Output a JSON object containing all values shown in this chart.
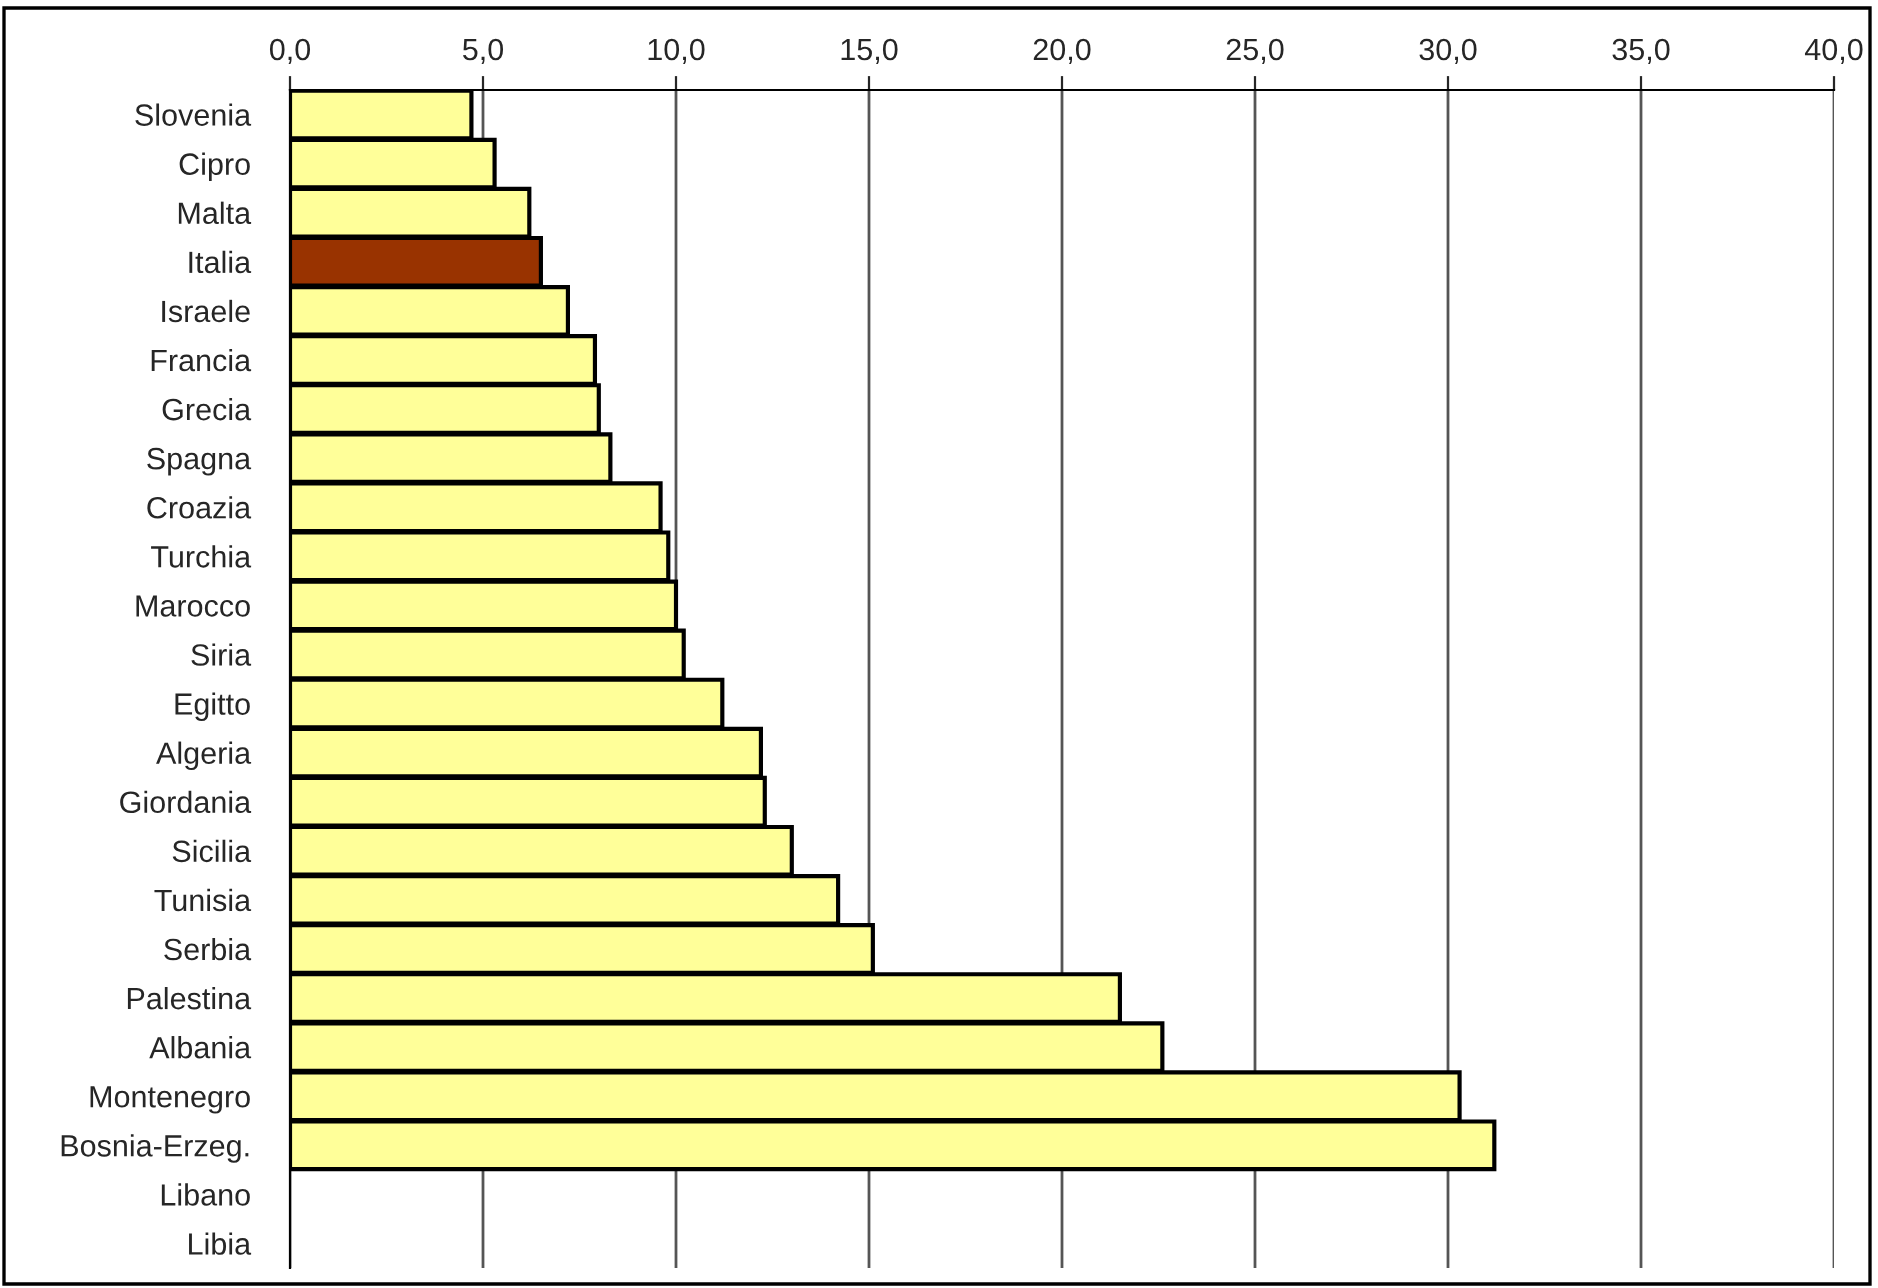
{
  "chart_data": {
    "type": "bar",
    "orientation": "horizontal",
    "categories": [
      "Slovenia",
      "Cipro",
      "Malta",
      "Italia",
      "Israele",
      "Francia",
      "Grecia",
      "Spagna",
      "Croazia",
      "Turchia",
      "Marocco",
      "Siria",
      "Egitto",
      "Algeria",
      "Giordania",
      "Sicilia",
      "Tunisia",
      "Serbia",
      "Palestina",
      "Albania",
      "Montenegro",
      "Bosnia-Erzeg.",
      "Libano",
      "Libia"
    ],
    "values": [
      4.7,
      5.3,
      6.2,
      6.5,
      7.2,
      7.9,
      8.0,
      8.3,
      9.6,
      9.8,
      10.0,
      10.2,
      11.2,
      12.2,
      12.3,
      13.0,
      14.2,
      15.1,
      21.5,
      22.6,
      30.3,
      31.2,
      null,
      null
    ],
    "colors": [
      "#ffff99",
      "#ffff99",
      "#ffff99",
      "#993300",
      "#ffff99",
      "#ffff99",
      "#ffff99",
      "#ffff99",
      "#ffff99",
      "#ffff99",
      "#ffff99",
      "#ffff99",
      "#ffff99",
      "#ffff99",
      "#ffff99",
      "#ffff99",
      "#ffff99",
      "#ffff99",
      "#ffff99",
      "#ffff99",
      "#ffff99",
      "#ffff99",
      "#ffff99",
      "#ffff99"
    ],
    "xlim": [
      0,
      40
    ],
    "xticks": [
      {
        "value": 0,
        "label": "0,0"
      },
      {
        "value": 5,
        "label": "5,0"
      },
      {
        "value": 10,
        "label": "10,0"
      },
      {
        "value": 15,
        "label": "15,0"
      },
      {
        "value": 20,
        "label": "20,0"
      },
      {
        "value": 25,
        "label": "25,0"
      },
      {
        "value": 30,
        "label": "30,0"
      },
      {
        "value": 35,
        "label": "35,0"
      },
      {
        "value": 40,
        "label": "40,0"
      }
    ],
    "grid": "x",
    "legend": false
  }
}
